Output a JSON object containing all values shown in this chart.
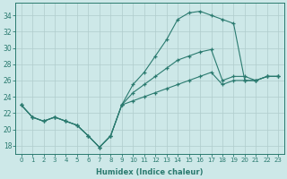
{
  "xlabel": "Humidex (Indice chaleur)",
  "background_color": "#cde8e8",
  "grid_color": "#b8d8d8",
  "line_color": "#2a7a6f",
  "xlim": [
    -0.5,
    23.5
  ],
  "ylim": [
    17,
    35.5
  ],
  "yticks": [
    18,
    20,
    22,
    24,
    26,
    28,
    30,
    32,
    34
  ],
  "xticks": [
    0,
    1,
    2,
    3,
    4,
    5,
    6,
    7,
    8,
    9,
    10,
    11,
    12,
    13,
    14,
    15,
    16,
    17,
    18,
    19,
    20,
    21,
    22,
    23
  ],
  "line1_x": [
    0,
    1,
    2,
    3,
    4,
    5,
    6,
    7,
    8,
    9,
    10,
    11,
    12,
    13,
    14,
    15,
    16,
    17,
    18,
    19,
    20,
    21,
    22,
    23
  ],
  "line1_y": [
    23.0,
    21.5,
    21.0,
    21.5,
    21.0,
    20.5,
    19.2,
    17.8,
    19.2,
    23.0,
    25.5,
    27.0,
    29.0,
    31.0,
    33.5,
    34.3,
    34.5,
    34.0,
    33.5,
    33.0,
    26.0,
    26.0,
    26.5,
    26.5
  ],
  "line2_x": [
    0,
    1,
    2,
    3,
    4,
    5,
    6,
    7,
    8,
    9,
    10,
    11,
    12,
    13,
    14,
    15,
    16,
    17,
    18,
    19,
    20,
    21,
    22,
    23
  ],
  "line2_y": [
    23.0,
    21.5,
    21.0,
    21.5,
    21.0,
    20.5,
    19.2,
    17.8,
    19.2,
    23.0,
    24.5,
    25.5,
    26.5,
    27.5,
    28.5,
    29.0,
    29.5,
    29.8,
    26.0,
    26.5,
    26.5,
    26.0,
    26.5,
    26.5
  ],
  "line3_x": [
    0,
    1,
    2,
    3,
    4,
    5,
    6,
    7,
    8,
    9,
    10,
    11,
    12,
    13,
    14,
    15,
    16,
    17,
    18,
    19,
    20,
    21,
    22,
    23
  ],
  "line3_y": [
    23.0,
    21.5,
    21.0,
    21.5,
    21.0,
    20.5,
    19.2,
    17.8,
    19.2,
    23.0,
    23.5,
    24.0,
    24.5,
    25.0,
    25.5,
    26.0,
    26.5,
    27.0,
    25.5,
    26.0,
    26.0,
    26.0,
    26.5,
    26.5
  ]
}
